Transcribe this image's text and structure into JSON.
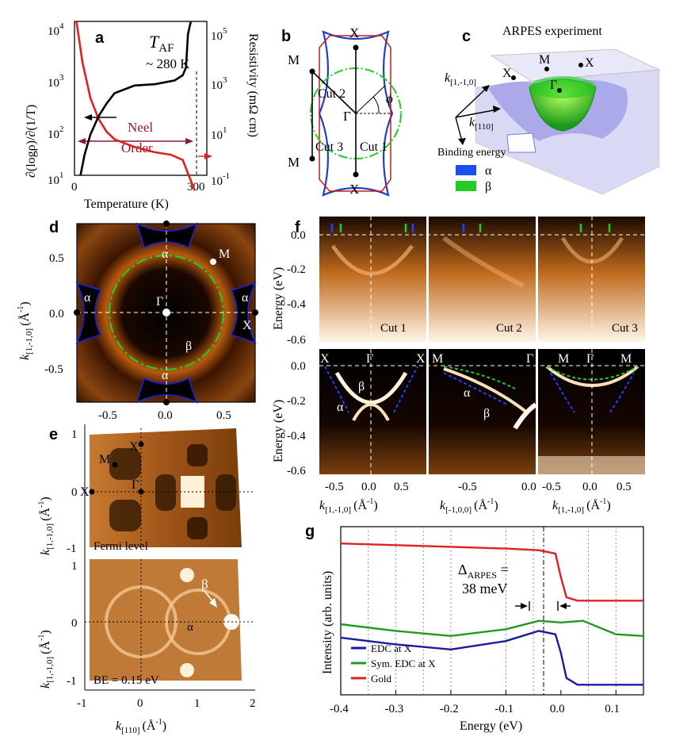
{
  "panels": {
    "a": {
      "letter": "a",
      "tn_label": "T",
      "tn_sub": "AF",
      "tn_value": "~ 280 K",
      "ylabel_left": "∂(logρ)/∂(1/T)",
      "ylabel_right": "Resistivity (mΩ cm)",
      "xlabel": "Temperature (K)",
      "x_ticks": [
        "0",
        "300"
      ],
      "y_left_ticks": [
        "10",
        "10",
        "10",
        "10"
      ],
      "y_left_exp": [
        "4",
        "3",
        "2",
        "1"
      ],
      "y_right_ticks": [
        "10",
        "10",
        "10",
        "10"
      ],
      "y_right_exp": [
        "5",
        "3",
        "1",
        "-1"
      ],
      "neel_line1": "Neel",
      "neel_line2": "Order"
    },
    "b": {
      "letter": "b",
      "points": [
        "X",
        "X",
        "M",
        "M",
        "Γ"
      ],
      "angle": "ϕ",
      "cuts": [
        "Cut 1",
        "Cut 2",
        "Cut 3"
      ]
    },
    "c": {
      "letter": "c",
      "title": "ARPES experiment",
      "points": [
        "M",
        "X",
        "X",
        "Γ"
      ],
      "axis1": "k",
      "axis1_sub": "[1,-1,0]",
      "axis2": "k",
      "axis2_sub": "[110]",
      "axis3": "Binding energy",
      "legend": [
        {
          "label": "α",
          "color": "#1a50f0"
        },
        {
          "label": "β",
          "color": "#22cc22"
        }
      ]
    },
    "d": {
      "letter": "d",
      "labels": [
        "α",
        "α",
        "α",
        "α",
        "β",
        "Γ",
        "M",
        "X"
      ],
      "x_ticks": [
        "-0.5",
        "0.0",
        "0.5"
      ],
      "y_ticks": [
        "0.5",
        "0.0",
        "-0.5"
      ],
      "ylabel": "k",
      "ylabel_sub": "[1,-1,0]",
      "ylabel_unit": "(Å",
      "ylabel_exp": "-1",
      "ylabel_close": ")"
    },
    "e": {
      "letter": "e",
      "top_caption": "Fermi level",
      "bottom_caption": "BE = 0.15 eV",
      "top_points": [
        "X",
        "M",
        "X",
        "Γ"
      ],
      "bottom_labels": [
        "β",
        "α"
      ],
      "x_ticks": [
        "-1",
        "0",
        "1",
        "2"
      ],
      "y_ticks_top": [
        "1",
        "0",
        "-1"
      ],
      "y_ticks_bottom": [
        "1",
        "0",
        "-1"
      ],
      "xlabel": "k",
      "xlabel_sub": "[110]",
      "xlabel_unit": "(Å",
      "xlabel_exp": "-1",
      "xlabel_close": ")",
      "ylabel": "k",
      "ylabel_sub": "[1,-1,0]",
      "ylabel_unit": "(Å",
      "ylabel_exp": "-1",
      "ylabel_close": ")"
    },
    "f": {
      "letter": "f",
      "cuts": [
        "Cut 1",
        "Cut 2",
        "Cut 3"
      ],
      "y_ticks": [
        "0.0",
        "-0.2",
        "-0.4",
        "-0.6"
      ],
      "ylabel": "Energy (eV)",
      "bottom_y_ticks": [
        "0.0",
        "-0.2",
        "-0.4",
        "-0.6"
      ],
      "b1_points": [
        "X",
        "Γ",
        "X"
      ],
      "b2_points": [
        "M",
        "Γ"
      ],
      "b3_points": [
        "M",
        "Γ",
        "M"
      ],
      "bands": [
        "β",
        "α",
        "α",
        "β"
      ],
      "x_ticks_1": [
        "-0.5",
        "0.0",
        "0.5"
      ],
      "x_ticks_2": [
        "-0.5",
        "0.0"
      ],
      "x_ticks_3": [
        "-0.5",
        "0.0",
        "0.5"
      ],
      "xlabel1": "k",
      "xlabel1_sub": "[1,-1,0]",
      "xlabel2": "k",
      "xlabel2_sub": "[-1,0,0]",
      "xlabel3": "k",
      "xlabel3_sub": "[1,-1,0]",
      "xunit": "(Å",
      "xexp": "-1",
      "xclose": ")"
    },
    "g": {
      "letter": "g",
      "ylabel": "Intensity (arb. units)",
      "xlabel": "Energy (eV)",
      "x_ticks": [
        "-0.4",
        "-0.3",
        "-0.2",
        "-0.1",
        "0.0",
        "0.1"
      ],
      "delta": "Δ",
      "delta_sub": "ARPES",
      "delta_eq": " =",
      "delta_value": "38 meV",
      "legend": [
        {
          "label": "EDC at X",
          "color": "#1a1aa0"
        },
        {
          "label": "Sym. EDC at X",
          "color": "#1f9a1f"
        },
        {
          "label": "Gold",
          "color": "#e02020"
        }
      ]
    }
  },
  "chart_data": [
    {
      "type": "line",
      "id": "a",
      "title": "",
      "xlabel": "Temperature (K)",
      "ylabel": "∂(logρ)/∂(1/T)",
      "y2label": "Resistivity (mΩ cm)",
      "xlim": [
        0,
        330
      ],
      "ylim_log": [
        1,
        4
      ],
      "y2lim_log": [
        -1,
        5
      ],
      "series": [
        {
          "name": "∂(logρ)/∂(1/T)",
          "color": "#e02020",
          "axis": "left",
          "x": [
            5,
            20,
            40,
            60,
            80,
            100,
            150,
            200,
            240,
            270,
            285,
            300
          ],
          "log_y": [
            4.0,
            3.2,
            2.5,
            2.1,
            1.85,
            1.7,
            1.55,
            1.45,
            1.4,
            1.3,
            1.0,
            0.7
          ]
        },
        {
          "name": "Resistivity",
          "color": "#000000",
          "axis": "right",
          "x": [
            15,
            25,
            40,
            60,
            80,
            100,
            150,
            200,
            250,
            270,
            278,
            283,
            290
          ],
          "log_y": [
            -1.0,
            -0.2,
            0.6,
            1.3,
            1.8,
            2.2,
            2.5,
            2.55,
            2.7,
            2.9,
            3.2,
            4.5,
            5.0
          ]
        }
      ]
    },
    {
      "type": "line",
      "id": "g",
      "title": "",
      "xlabel": "Energy (eV)",
      "ylabel": "Intensity (arb. units)",
      "xlim": [
        -0.4,
        0.15
      ],
      "series": [
        {
          "name": "Gold",
          "color": "#e02020",
          "x": [
            -0.4,
            -0.3,
            -0.2,
            -0.1,
            -0.04,
            -0.01,
            0.0,
            0.01,
            0.03,
            0.15
          ],
          "y": [
            0.9,
            0.89,
            0.88,
            0.87,
            0.86,
            0.84,
            0.7,
            0.58,
            0.56,
            0.56
          ]
        },
        {
          "name": "Sym. EDC at X",
          "color": "#1f9a1f",
          "x": [
            -0.4,
            -0.3,
            -0.2,
            -0.1,
            -0.04,
            0.0,
            0.04,
            0.1,
            0.15
          ],
          "y": [
            0.42,
            0.38,
            0.35,
            0.39,
            0.44,
            0.43,
            0.44,
            0.36,
            0.35
          ]
        },
        {
          "name": "EDC at X",
          "color": "#1a1aa0",
          "x": [
            -0.4,
            -0.3,
            -0.2,
            -0.1,
            -0.04,
            -0.01,
            0.0,
            0.01,
            0.03,
            0.15
          ],
          "y": [
            0.34,
            0.3,
            0.27,
            0.32,
            0.38,
            0.36,
            0.25,
            0.1,
            0.06,
            0.06
          ]
        }
      ]
    }
  ]
}
